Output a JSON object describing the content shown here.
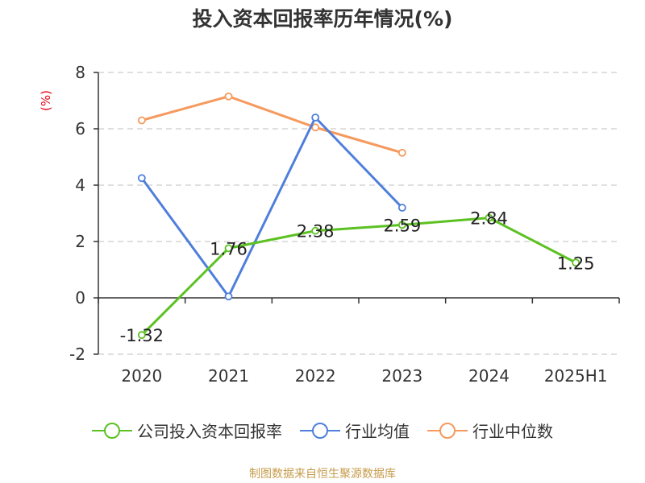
{
  "title": "投入资本回报率历年情况(%)",
  "y_unit_label": "(%)",
  "source_note": "制图数据来自恒生聚源数据库",
  "colors": {
    "company": "#5cc122",
    "industry_avg": "#4f7fdb",
    "industry_median": "#f59a5e",
    "unit_label": "#e60012",
    "grid": "#cccccc",
    "axis": "#333333",
    "source": "#c69c4b"
  },
  "chart_data": {
    "type": "line",
    "title": "投入资本回报率历年情况(%)",
    "xlabel": "",
    "ylabel": "(%)",
    "categories": [
      "2020",
      "2021",
      "2022",
      "2023",
      "2024",
      "2025H1"
    ],
    "ylim": [
      -2,
      8
    ],
    "yticks": [
      -2,
      0,
      2,
      4,
      6,
      8
    ],
    "grid": true,
    "legend_position": "bottom",
    "series": [
      {
        "name": "公司投入资本回报率",
        "key": "company",
        "values": [
          -1.32,
          1.76,
          2.38,
          2.59,
          2.84,
          1.25
        ],
        "show_labels": true
      },
      {
        "name": "行业均值",
        "key": "industry_avg",
        "values": [
          4.25,
          0.05,
          6.4,
          3.2,
          null,
          null
        ],
        "show_labels": false
      },
      {
        "name": "行业中位数",
        "key": "industry_median",
        "values": [
          6.3,
          7.15,
          6.05,
          5.15,
          null,
          null
        ],
        "show_labels": false
      }
    ],
    "data_labels": [
      "-1.32",
      "1.76",
      "2.38",
      "2.59",
      "2.84",
      "1.25"
    ]
  }
}
